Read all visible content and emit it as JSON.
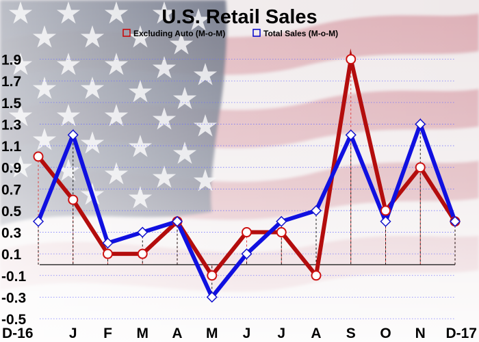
{
  "chart_data": {
    "type": "line",
    "title": "U.S. Retail Sales",
    "categories": [
      "D-16",
      "J",
      "F",
      "M",
      "A",
      "M",
      "J",
      "J",
      "A",
      "S",
      "O",
      "N",
      "D-17"
    ],
    "y_ticks": [
      "1.9",
      "1.7",
      "1.5",
      "1.3",
      "1.1",
      "0.9",
      "0.7",
      "0.5",
      "0.3",
      "0.1",
      "-0.1",
      "-0.3",
      "-0.5"
    ],
    "ylim": [
      -0.5,
      2.1
    ],
    "grid": "horizontal dotted",
    "legend_position": "top-center",
    "series": [
      {
        "name": "Excluding Auto (M-o-M)",
        "marker": "circle",
        "color": "#b30d0d",
        "values": [
          1.0,
          0.6,
          0.1,
          0.1,
          0.4,
          -0.1,
          0.3,
          0.3,
          -0.1,
          1.9,
          0.5,
          0.9,
          0.4
        ]
      },
      {
        "name": "Total Sales (M-o-M)",
        "marker": "diamond",
        "color": "#1010e0",
        "values": [
          0.4,
          1.2,
          0.2,
          0.3,
          0.4,
          -0.3,
          0.1,
          0.4,
          0.5,
          1.2,
          0.4,
          1.3,
          0.4
        ]
      }
    ]
  }
}
